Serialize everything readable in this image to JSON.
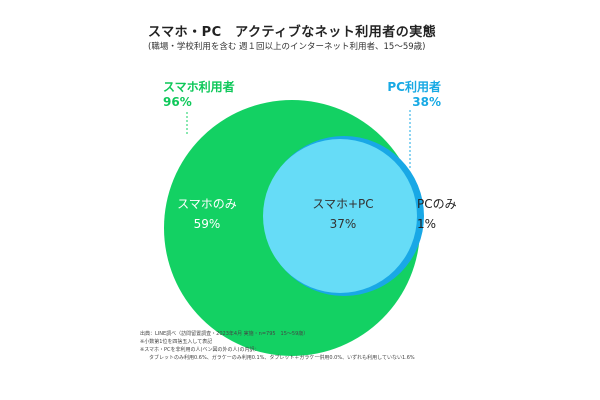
{
  "title": "スマホ・PC　アクティブなネット利用者の実態",
  "subtitle": "(職場・学校利用を含む 週１回以上のインターネット利用者、15～59歳)",
  "colors": {
    "smartphone": "#13d163",
    "pc": "#66dcf7",
    "pc_only": "#19a8e6",
    "smartphone_label": "#0fc85a",
    "pc_label": "#17a9e4"
  },
  "chart_data": {
    "type": "venn",
    "title": "スマホ・PC　アクティブなネット利用者の実態",
    "subtitle": "(職場・学校利用を含む 週１回以上のインターネット利用者、15～59歳)",
    "sets": [
      {
        "name": "スマホ利用者",
        "value": 96,
        "value_label": "96%"
      },
      {
        "name": "PC利用者",
        "value": 38,
        "value_label": "38%"
      }
    ],
    "regions": [
      {
        "label": "スマホのみ",
        "value": 59,
        "value_label": "59%"
      },
      {
        "label": "スマホ+PC",
        "value": 37,
        "value_label": "37%"
      },
      {
        "label": "PCのみ",
        "value": 1,
        "value_label": "1%"
      }
    ]
  },
  "notes": [
    "出典：LINE調べ（訪問留置調査・2023年4月 実施・n=795　15～59歳）",
    "※小数第1位を四捨五入して表記",
    "※スマホ・PCを非利用の人(ベン図の外の人)の内訳：",
    "タブレットのみ利用0.6%、ガラケーのみ利用0.1%、タブレット＋ガラケー併用0.0%、いずれも利用していない1.6%"
  ]
}
